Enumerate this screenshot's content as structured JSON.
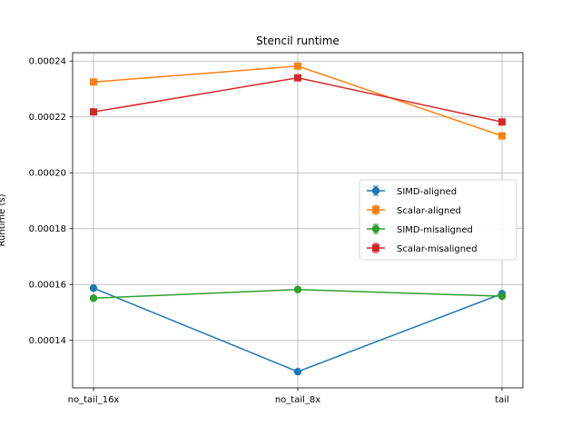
{
  "chart_data": {
    "type": "line",
    "title": "Stencil runtime",
    "xlabel": "",
    "ylabel": "Runtime (s)",
    "categories": [
      "no_tail_16x",
      "no_tail_8x",
      "tail"
    ],
    "ylim": [
      0.000123,
      0.000243
    ],
    "yticks": [
      0.00014,
      0.00016,
      0.00018,
      0.0002,
      0.00022,
      0.00024
    ],
    "ytick_labels": [
      "0.00014",
      "0.00016",
      "0.00018",
      "0.00020",
      "0.00022",
      "0.00024"
    ],
    "grid": true,
    "legend_position": "center-right",
    "series": [
      {
        "name": "SIMD-aligned",
        "color": "#1f77b4",
        "marker": "circle",
        "values": [
          0.0001587,
          0.0001288,
          0.0001567
        ]
      },
      {
        "name": "Scalar-aligned",
        "color": "#ff7f0e",
        "marker": "square",
        "values": [
          0.0002325,
          0.0002382,
          0.0002132
        ]
      },
      {
        "name": "SIMD-misaligned",
        "color": "#2ca02c",
        "marker": "circle",
        "values": [
          0.0001551,
          0.0001582,
          0.0001558
        ]
      },
      {
        "name": "Scalar-misaligned",
        "color": "#d62728",
        "marker": "square",
        "values": [
          0.0002218,
          0.000234,
          0.0002182
        ]
      }
    ]
  }
}
